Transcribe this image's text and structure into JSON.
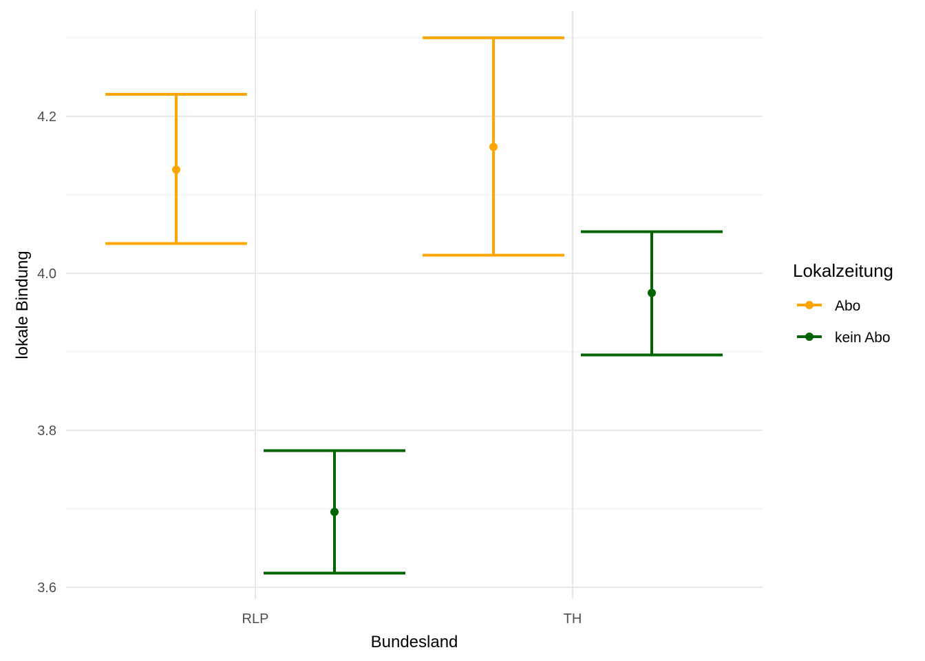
{
  "chart_data": {
    "type": "errorbar",
    "title": "",
    "xlabel": "Bundesland",
    "ylabel": "lokale Bindung",
    "categories": [
      "RLP",
      "TH"
    ],
    "ylim": [
      3.585,
      4.335
    ],
    "yticks": [
      3.6,
      3.8,
      4.0,
      4.2
    ],
    "ytick_labels": [
      "3.6",
      "3.8",
      "4.0",
      "4.2"
    ],
    "grid": true,
    "legend": {
      "title": "Lokalzeitung",
      "position": "right"
    },
    "series": [
      {
        "name": "Abo",
        "color": "#FFA500",
        "points": [
          {
            "category": "RLP",
            "mean": 4.132,
            "lower": 4.038,
            "upper": 4.228
          },
          {
            "category": "TH",
            "mean": 4.161,
            "lower": 4.023,
            "upper": 4.3
          }
        ]
      },
      {
        "name": "kein Abo",
        "color": "#006400",
        "points": [
          {
            "category": "RLP",
            "mean": 3.696,
            "lower": 3.618,
            "upper": 3.774
          },
          {
            "category": "TH",
            "mean": 3.975,
            "lower": 3.896,
            "upper": 4.053
          }
        ]
      }
    ]
  }
}
